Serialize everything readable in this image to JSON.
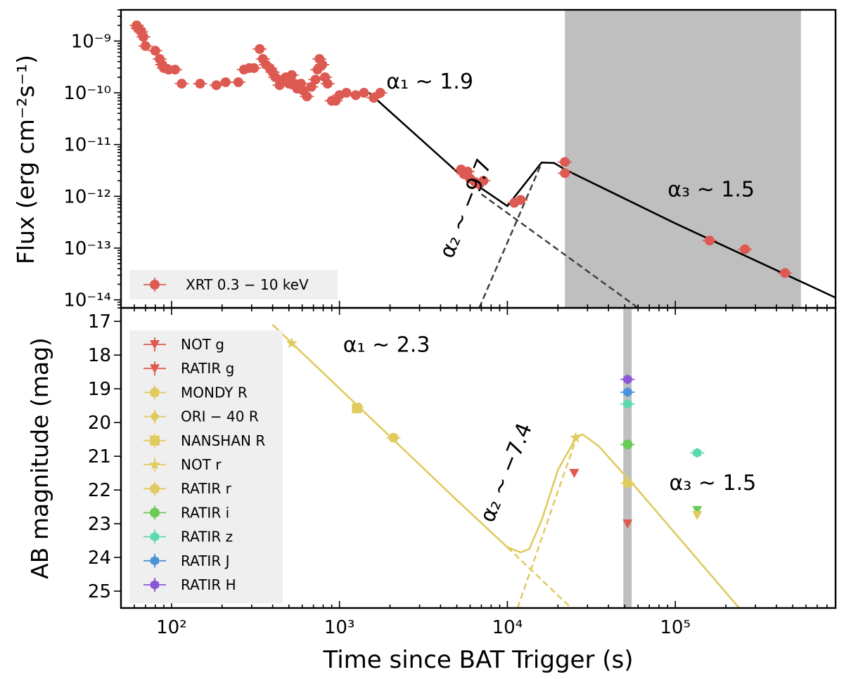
{
  "chart_data": [
    {
      "type": "scatter",
      "panel": "top",
      "xlabel": "Time since BAT Trigger (s)",
      "ylabel": "Flux (erg cm⁻²s⁻¹)",
      "xscale": "log",
      "yscale": "log",
      "xlim": [
        50,
        900000
      ],
      "ylim": [
        7e-15,
        4e-09
      ],
      "x_tick_values": [
        100,
        1000,
        10000,
        100000
      ],
      "x_tick_labels": [
        "10²",
        "10³",
        "10⁴",
        "10⁵"
      ],
      "y_tick_values": [
        1e-14,
        1e-13,
        1e-12,
        1e-11,
        1e-10,
        1e-09
      ],
      "y_tick_labels": [
        "10⁻¹⁴",
        "10⁻¹³",
        "10⁻¹²",
        "10⁻¹¹",
        "10⁻¹⁰",
        "10⁻⁹"
      ],
      "shaded_interval": [
        22000,
        560000
      ],
      "annotations": [
        {
          "text": "α₁ ~ 1.9",
          "x": 1900,
          "y": 1.2e-10
        },
        {
          "text": "α₃ ~ 1.5",
          "x": 90000,
          "y": 1e-12
        },
        {
          "text": "α₂ ~ −9.7",
          "x": 4700,
          "y": 6e-14,
          "rotation": -68
        }
      ],
      "legend": {
        "location": "lower-left",
        "entries": [
          {
            "label": "XRT 0.3 − 10 keV",
            "color": "#dd5a52",
            "marker": "circle"
          }
        ]
      },
      "series": [
        {
          "name": "XRT 0.3 − 10 keV",
          "color": "#dd5a52",
          "marker": "circle",
          "points": [
            [
              62,
              2e-09
            ],
            [
              63,
              1.8e-09
            ],
            [
              64,
              1.7e-09
            ],
            [
              66,
              1.5e-09
            ],
            [
              68,
              1.2e-09
            ],
            [
              70,
              8e-10
            ],
            [
              80,
              6.5e-10
            ],
            [
              85,
              4.5e-10
            ],
            [
              88,
              3.5e-10
            ],
            [
              90,
              3e-10
            ],
            [
              96,
              2.8e-10
            ],
            [
              105,
              2.8e-10
            ],
            [
              115,
              1.5e-10
            ],
            [
              148,
              1.5e-10
            ],
            [
              185,
              1.4e-10
            ],
            [
              210,
              1.6e-10
            ],
            [
              250,
              1.6e-10
            ],
            [
              270,
              2.8e-10
            ],
            [
              290,
              3e-10
            ],
            [
              310,
              3e-10
            ],
            [
              335,
              7e-10
            ],
            [
              350,
              4.5e-10
            ],
            [
              365,
              3.5e-10
            ],
            [
              385,
              3e-10
            ],
            [
              400,
              2.5e-10
            ],
            [
              415,
              2e-10
            ],
            [
              440,
              1.4e-10
            ],
            [
              460,
              1.8e-10
            ],
            [
              480,
              2e-10
            ],
            [
              500,
              1.5e-10
            ],
            [
              520,
              2.2e-10
            ],
            [
              540,
              1.5e-10
            ],
            [
              560,
              1.2e-10
            ],
            [
              590,
              1.5e-10
            ],
            [
              610,
              1.1e-10
            ],
            [
              640,
              8.5e-11
            ],
            [
              680,
              1.3e-10
            ],
            [
              720,
              1.8e-10
            ],
            [
              740,
              2.8e-10
            ],
            [
              760,
              4.5e-10
            ],
            [
              790,
              3.5e-10
            ],
            [
              820,
              2e-10
            ],
            [
              850,
              1.5e-10
            ],
            [
              900,
              7e-11
            ],
            [
              950,
              7e-11
            ],
            [
              1000,
              9e-11
            ],
            [
              1100,
              1e-10
            ],
            [
              1250,
              9e-11
            ],
            [
              1400,
              1e-10
            ],
            [
              1600,
              8e-11
            ],
            [
              1750,
              1e-10
            ],
            [
              5300,
              3.3e-12
            ],
            [
              5500,
              2.7e-12
            ],
            [
              5800,
              3e-12
            ],
            [
              6000,
              2.2e-12
            ],
            [
              6400,
              1.9e-12
            ],
            [
              6800,
              1.7e-12
            ],
            [
              7200,
              2e-12
            ],
            [
              11000,
              7.5e-13
            ],
            [
              12000,
              8.5e-13
            ],
            [
              22000,
              4.6e-12
            ],
            [
              22000,
              2.8e-12
            ],
            [
              160000,
              1.4e-13
            ],
            [
              260000,
              9.5e-14
            ],
            [
              450000,
              3.3e-14
            ]
          ]
        }
      ],
      "model_lines": [
        {
          "name": "total model",
          "style": "solid",
          "color": "#000000",
          "points": [
            [
              1500,
              1e-10
            ],
            [
              5000,
              3e-12
            ],
            [
              10000,
              6.5e-13
            ],
            [
              16000,
              4.5e-12
            ],
            [
              19000,
              4.4e-12
            ],
            [
              22000,
              3.3e-12
            ],
            [
              100000,
              3e-13
            ],
            [
              900000,
              1.1e-14
            ]
          ]
        },
        {
          "name": "component α₁",
          "style": "dashed",
          "color": "#404040",
          "points": [
            [
              7000,
              1.1e-12
            ],
            [
              60000,
              7e-15
            ]
          ]
        },
        {
          "name": "component α₂",
          "style": "dashed",
          "color": "#404040",
          "points": [
            [
              6800,
              7e-15
            ],
            [
              16000,
              4.4e-12
            ]
          ]
        }
      ]
    },
    {
      "type": "scatter",
      "panel": "bottom",
      "xlabel": "Time since BAT Trigger (s)",
      "ylabel": "AB magnitude (mag)",
      "xscale": "log",
      "yscale": "linear",
      "y_inverted": true,
      "xlim": [
        50,
        900000
      ],
      "ylim": [
        25.5,
        16.6
      ],
      "x_tick_values": [
        100,
        1000,
        10000,
        100000
      ],
      "x_tick_labels": [
        "10²",
        "10³",
        "10⁴",
        "10⁵"
      ],
      "y_tick_values": [
        17,
        18,
        19,
        20,
        21,
        22,
        23,
        24,
        25
      ],
      "y_tick_labels": [
        "17",
        "18",
        "19",
        "20",
        "21",
        "22",
        "23",
        "24",
        "25"
      ],
      "shaded_interval": [
        49000,
        55000
      ],
      "annotations": [
        {
          "text": "α₁ ~ 2.3",
          "x": 1050,
          "y": 17.9
        },
        {
          "text": "α₃ ~ 1.5",
          "x": 92000,
          "y": 22.0
        },
        {
          "text": "α₂ ~ −7.4",
          "x": 8200,
          "y": 23.0,
          "rotation": -68
        }
      ],
      "legend": {
        "location": "upper-left",
        "entries": [
          {
            "label": "NOT g",
            "color": "#dd5a52",
            "marker": "triangle-down"
          },
          {
            "label": "RATIR g",
            "color": "#dd5a52",
            "marker": "triangle-down"
          },
          {
            "label": "MONDY R",
            "color": "#e0cb5f",
            "marker": "circle"
          },
          {
            "label": "ORI − 40 R",
            "color": "#e0cb5f",
            "marker": "diamond"
          },
          {
            "label": "NANSHAN R",
            "color": "#e0cb5f",
            "marker": "square"
          },
          {
            "label": "NOT r",
            "color": "#e0cb5f",
            "marker": "star"
          },
          {
            "label": "RATIR r",
            "color": "#e0cb5f",
            "marker": "circle"
          },
          {
            "label": "RATIR i",
            "color": "#6acb56",
            "marker": "circle"
          },
          {
            "label": "RATIR z",
            "color": "#5bd9b0",
            "marker": "hexagon"
          },
          {
            "label": "RATIR J",
            "color": "#4d92d9",
            "marker": "hexagon"
          },
          {
            "label": "RATIR H",
            "color": "#8a55d9",
            "marker": "hexagon"
          }
        ]
      },
      "series": [
        {
          "name": "NOT g",
          "color": "#dd5a52",
          "marker": "triangle-down",
          "points": [
            [
              25000,
              21.5
            ]
          ]
        },
        {
          "name": "RATIR g",
          "color": "#dd5a52",
          "marker": "triangle-down",
          "points": [
            [
              52000,
              23.0
            ]
          ]
        },
        {
          "name": "MONDY R",
          "color": "#e0cb5f",
          "marker": "circle",
          "points": [
            [
              2100,
              20.45
            ]
          ]
        },
        {
          "name": "ORI − 40 R",
          "color": "#e0cb5f",
          "marker": "diamond",
          "points": [
            [
              1300,
              19.55
            ]
          ]
        },
        {
          "name": "NANSHAN R",
          "color": "#e0cb5f",
          "marker": "square",
          "points": [
            [
              1270,
              19.58
            ]
          ]
        },
        {
          "name": "NOT r",
          "color": "#e0cb5f",
          "marker": "star",
          "points": [
            [
              520,
              17.65
            ],
            [
              25500,
              20.45
            ]
          ]
        },
        {
          "name": "RATIR r",
          "color": "#e0cb5f",
          "marker": "circle",
          "points": [
            [
              52000,
              21.8
            ]
          ]
        },
        {
          "name": "RATIR i",
          "color": "#6acb56",
          "marker": "circle",
          "points": [
            [
              52000,
              20.65
            ]
          ]
        },
        {
          "name": "RATIR z",
          "color": "#5bd9b0",
          "marker": "hexagon",
          "points": [
            [
              52000,
              19.45
            ],
            [
              135000,
              20.9
            ]
          ]
        },
        {
          "name": "RATIR J",
          "color": "#4d92d9",
          "marker": "hexagon",
          "points": [
            [
              52000,
              19.1
            ]
          ]
        },
        {
          "name": "RATIR H",
          "color": "#8a55d9",
          "marker": "hexagon",
          "points": [
            [
              52000,
              18.72
            ]
          ]
        },
        {
          "name": "upper limits (day 1.5)",
          "color": "#6acb56",
          "marker": "triangle-down",
          "points": [
            [
              135000,
              22.6
            ]
          ]
        },
        {
          "name": "upper limits (day 1.5, r)",
          "color": "#e0cb5f",
          "marker": "triangle-down",
          "points": [
            [
              135000,
              22.75
            ]
          ]
        }
      ],
      "model_lines": [
        {
          "name": "total model",
          "style": "solid",
          "color": "#e0cb5f",
          "points": [
            [
              400,
              17.1
            ],
            [
              5000,
              22.3
            ],
            [
              10000,
              23.7
            ],
            [
              12000,
              23.85
            ],
            [
              13500,
              23.75
            ],
            [
              16000,
              22.9
            ],
            [
              20000,
              21.4
            ],
            [
              26000,
              20.4
            ],
            [
              28000,
              20.35
            ],
            [
              35000,
              20.7
            ],
            [
              60000,
              22.0
            ],
            [
              240000,
              25.5
            ]
          ]
        },
        {
          "name": "component α₁",
          "style": "dashed",
          "color": "#e0cb5f",
          "points": [
            [
              10000,
              23.7
            ],
            [
              24000,
              25.5
            ]
          ]
        },
        {
          "name": "component α₂",
          "style": "dashed",
          "color": "#e0cb5f",
          "points": [
            [
              11500,
              25.5
            ],
            [
              26000,
              20.4
            ]
          ]
        }
      ]
    }
  ]
}
